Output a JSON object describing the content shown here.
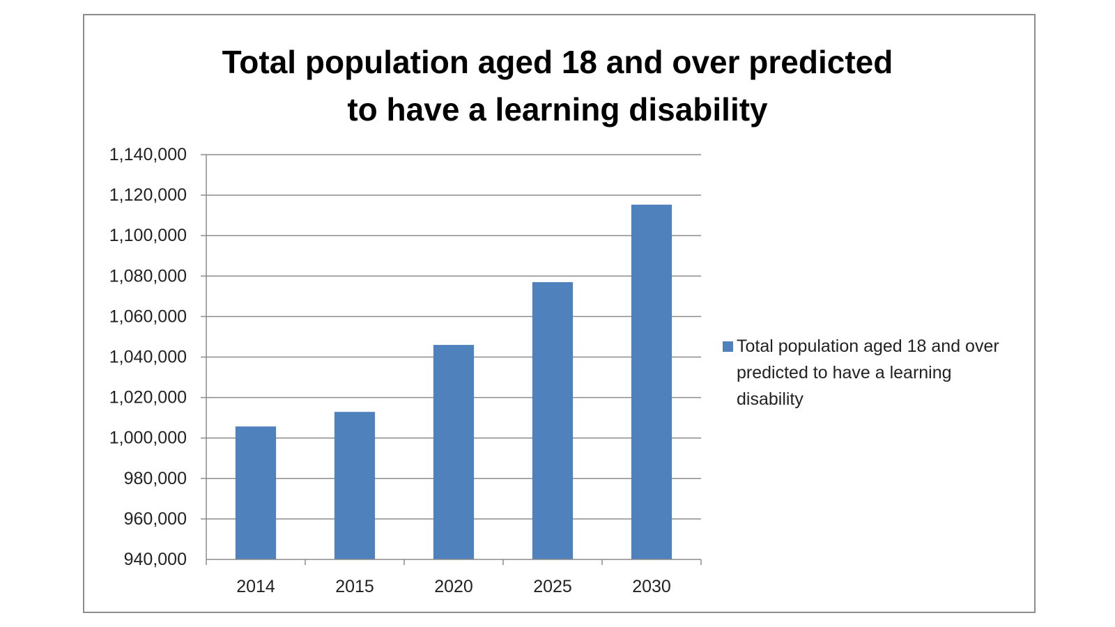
{
  "chart_data": {
    "type": "bar",
    "title": "Total population aged 18 and over predicted to have a learning disability",
    "title_lines": [
      "Total population aged 18 and over predicted",
      "to have a learning disability"
    ],
    "categories": [
      "2014",
      "2015",
      "2020",
      "2025",
      "2030"
    ],
    "series": [
      {
        "name": "Total population aged 18 and over predicted to have a learning disability",
        "values": [
          1005700,
          1012900,
          1046000,
          1077000,
          1115300
        ],
        "color": "#4f81bd"
      }
    ],
    "ylim": [
      940000,
      1140000
    ],
    "yticks": [
      "940,000",
      "960,000",
      "980,000",
      "1,000,000",
      "1,020,000",
      "1,040,000",
      "1,060,000",
      "1,080,000",
      "1,100,000",
      "1,120,000",
      "1,140,000"
    ],
    "ytick_values": [
      940000,
      960000,
      980000,
      1000000,
      1020000,
      1040000,
      1060000,
      1080000,
      1100000,
      1120000,
      1140000
    ],
    "grid": true,
    "legend_position": "right",
    "xlabel": "",
    "ylabel": ""
  }
}
